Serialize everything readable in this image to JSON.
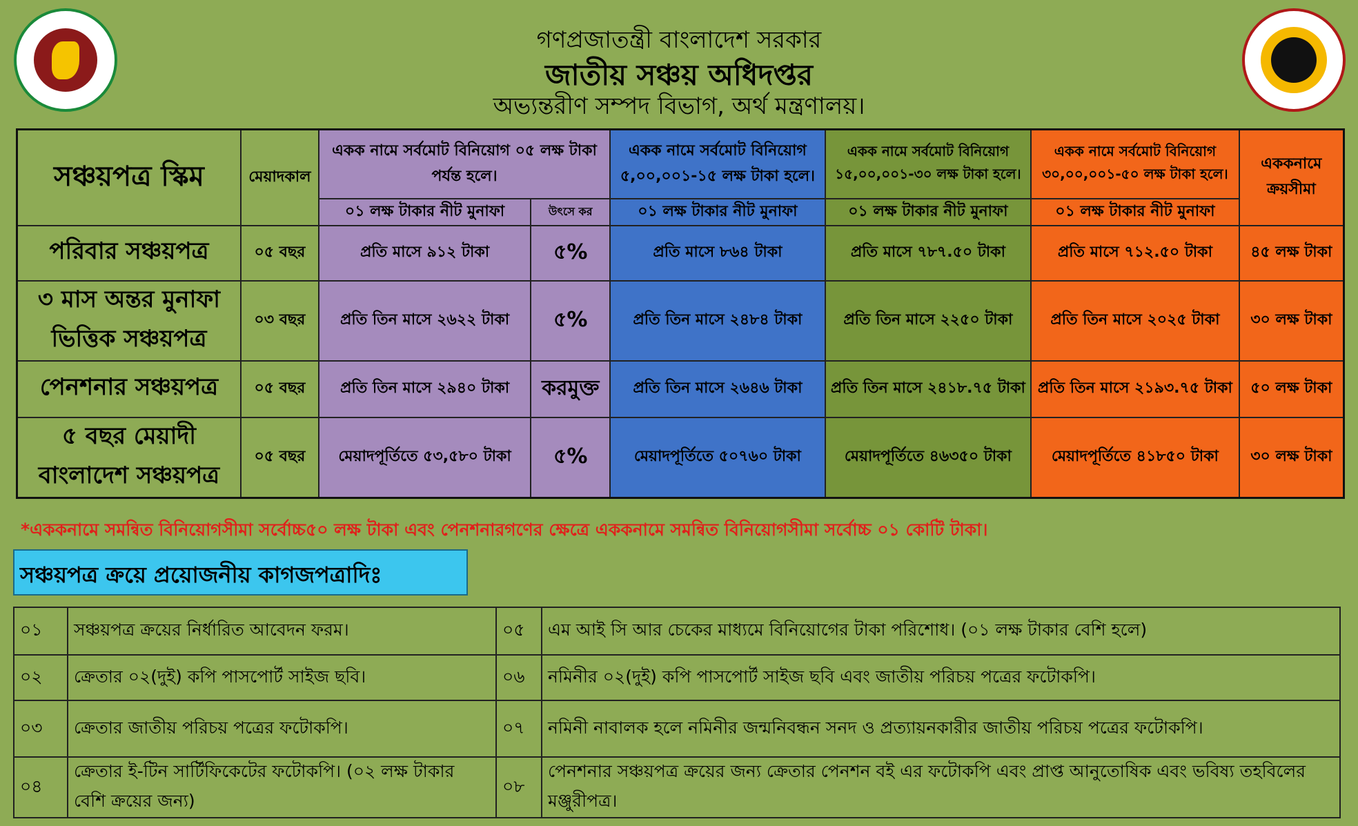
{
  "header": {
    "line1": "গণপ্রজাতন্ত্রী বাংলাদেশ সরকার",
    "line2": "জাতীয় সঞ্চয় অধিদপ্তর",
    "line3": "অভ্যন্তরীণ সম্পদ বিভাগ, অর্থ মন্ত্রণালয়।",
    "logo_left": "গণপ্রজাতন্ত্রী বাংলাদেশ সরকার",
    "logo_right": "জাতীয় সঞ্চয় অধিদপ্তর, বাংলাদেশ"
  },
  "colors": {
    "background": "#8eab55",
    "purple": "#a58bbd",
    "blue": "#3f73c8",
    "green": "#77953a",
    "orange": "#f2661a",
    "note": "#e0201b",
    "doc_box": "#3cc6ee"
  },
  "table": {
    "scheme_header": "সঞ্চয়পত্র স্কিম",
    "duration_header": "মেয়াদকাল",
    "groups": [
      {
        "title": "একক নামে সর্বমোট বিনিয়োগ ০৫ লক্ষ টাকা পর্যন্ত হলে।",
        "sub": "০১ লক্ষ টাকার নীট মুনাফা",
        "tax": "উৎসে কর"
      },
      {
        "title": "একক নামে সর্বমোট বিনিয়োগ ৫,০০,০০১-১৫ লক্ষ টাকা হলে।",
        "sub": "০১ লক্ষ টাকার নীট মুনাফা"
      },
      {
        "title": "একক নামে সর্বমোট বিনিয়োগ ১৫,০০,০০১-৩০ লক্ষ টাকা হলে।",
        "sub": "০১ লক্ষ টাকার নীট মুনাফা"
      },
      {
        "title": "একক নামে সর্বমোট বিনিয়োগ ৩০,০০,০০১-৫০ লক্ষ টাকা হলে।",
        "sub": "০১ লক্ষ টাকার নীট মুনাফা"
      }
    ],
    "limit_header": "এককনামে ক্রয়সীমা",
    "rows": [
      {
        "scheme": "পরিবার সঞ্চয়পত্র",
        "duration": "০৫ বছর",
        "g1": "প্রতি মাসে ৯১২ টাকা",
        "tax": "৫%",
        "g2": "প্রতি মাসে ৮৬৪ টাকা",
        "g3": "প্রতি মাসে ৭৮৭.৫০ টাকা",
        "g4": "প্রতি মাসে ৭১২.৫০ টাকা",
        "limit": "৪৫ লক্ষ টাকা"
      },
      {
        "scheme": "৩ মাস অন্তর মুনাফা ভিত্তিক সঞ্চয়পত্র",
        "duration": "০৩ বছর",
        "g1": "প্রতি তিন মাসে ২৬২২ টাকা",
        "tax": "৫%",
        "g2": "প্রতি তিন মাসে ২৪৮৪ টাকা",
        "g3": "প্রতি তিন মাসে ২২৫০ টাকা",
        "g4": "প্রতি তিন মাসে ২০২৫ টাকা",
        "limit": "৩০ লক্ষ টাকা"
      },
      {
        "scheme": "পেনশনার সঞ্চয়পত্র",
        "duration": "০৫ বছর",
        "g1": "প্রতি তিন মাসে ২৯৪০ টাকা",
        "tax": "করমুক্ত",
        "g2": "প্রতি তিন মাসে ২৬৪৬ টাকা",
        "g3": "প্রতি তিন মাসে ২৪১৮.৭৫ টাকা",
        "g4": "প্রতি তিন মাসে ২১৯৩.৭৫ টাকা",
        "limit": "৫০ লক্ষ টাকা"
      },
      {
        "scheme": "৫ বছর মেয়াদী বাংলাদেশ সঞ্চয়পত্র",
        "duration": "০৫ বছর",
        "g1": "মেয়াদপূর্তিতে ৫৩,৫৮০ টাকা",
        "tax": "৫%",
        "g2": "মেয়াদপূর্তিতে ৫০৭৬০ টাকা",
        "g3": "মেয়াদপূর্তিতে ৪৬৩৫০ টাকা",
        "g4": "মেয়াদপূর্তিতে ৪১৮৫০ টাকা",
        "limit": "৩০ লক্ষ টাকা"
      }
    ]
  },
  "note": "*এককনামে সমন্বিত বিনিয়োগসীমা সর্বোচ্চ৫০ লক্ষ টাকা এবং পেনশনারগণের ক্ষেত্রে এককনামে সমন্বিত বিনিয়োগসীমা সর্বোচ্চ ০১ কোটি টাকা।",
  "docs_title": "সঞ্চয়পত্র ক্রয়ে প্রয়োজনীয় কাগজপত্রাদিঃ",
  "docs": [
    {
      "n": "০১",
      "t": "সঞ্চয়পত্র ক্রয়ের নির্ধারিত আবেদন ফরম।",
      "n2": "০৫",
      "t2": "এম আই সি আর চেকের মাধ্যমে বিনিয়োগের টাকা পরিশোধ। (০১ লক্ষ টাকার বেশি হলে)"
    },
    {
      "n": "০২",
      "t": "ক্রেতার ০২(দুই) কপি পাসপোর্ট সাইজ ছবি।",
      "n2": "০৬",
      "t2": "নমিনীর ০২(দুই) কপি পাসপোর্ট সাইজ ছবি এবং জাতীয় পরিচয় পত্রের ফটোকপি।"
    },
    {
      "n": "০৩",
      "t": "ক্রেতার জাতীয় পরিচয় পত্রের ফটোকপি।",
      "n2": "০৭",
      "t2": "নমিনী নাবালক হলে নমিনীর জন্মনিবন্ধন সনদ ও প্রত্যায়নকারীর জাতীয় পরিচয় পত্রের ফটোকপি।"
    },
    {
      "n": "০৪",
      "t": "ক্রেতার ই-টিন সার্টিফিকেটের ফটোকপি। (০২ লক্ষ টাকার বেশি ক্রয়ের জন্য)",
      "n2": "০৮",
      "t2": "পেনশনার সঞ্চয়পত্র ক্রয়ের জন্য ক্রেতার পেনশন বই এর ফটোকপি এবং প্রাপ্ত আনুতোষিক এবং ভবিষ্য তহবিলের মঞ্জুরীপত্র।"
    }
  ]
}
